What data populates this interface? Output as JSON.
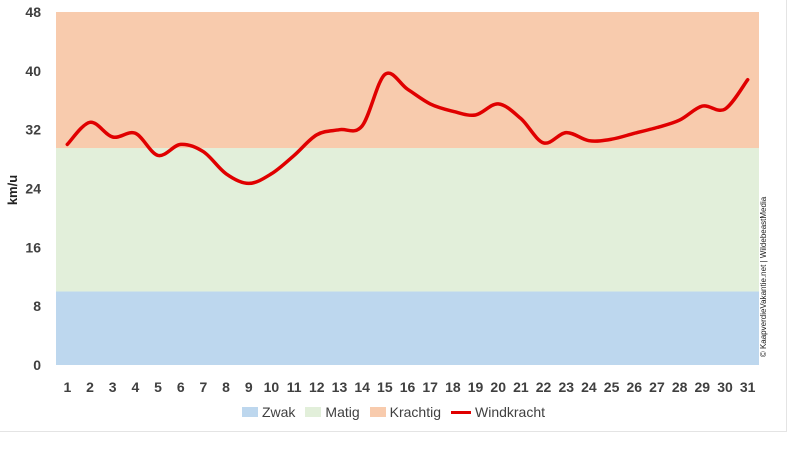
{
  "chart_data": {
    "type": "line",
    "ylabel": "km/u",
    "xlabel": "",
    "ylim": [
      0,
      48
    ],
    "yticks": [
      "0",
      "8",
      "16",
      "24",
      "32",
      "40",
      "48"
    ],
    "x": [
      "1",
      "2",
      "3",
      "4",
      "5",
      "6",
      "7",
      "8",
      "9",
      "10",
      "11",
      "12",
      "13",
      "14",
      "15",
      "16",
      "17",
      "18",
      "19",
      "20",
      "21",
      "22",
      "23",
      "24",
      "25",
      "26",
      "27",
      "28",
      "29",
      "30",
      "31"
    ],
    "bands": [
      {
        "name": "Zwak",
        "from": 0,
        "to": 10,
        "color": "#bdd7ee"
      },
      {
        "name": "Matig",
        "from": 10,
        "to": 29.5,
        "color": "#e2efda"
      },
      {
        "name": "Krachtig",
        "from": 29.5,
        "to": 48,
        "color": "#f8cbad"
      }
    ],
    "series": [
      {
        "name": "Windkracht",
        "color": "#e00000",
        "values": [
          30,
          33,
          31,
          31.5,
          28.5,
          30,
          29,
          26,
          24.7,
          26,
          28.5,
          31.3,
          32,
          32.5,
          39.5,
          37.5,
          35.5,
          34.5,
          34,
          35.5,
          33.5,
          30.2,
          31.6,
          30.5,
          30.7,
          31.5,
          32.3,
          33.3,
          35.2,
          34.8,
          38.8
        ]
      }
    ],
    "legend_position": "bottom",
    "grid": false
  },
  "credit": "© KaapverdieVakantie.net | WildebeastMedia"
}
